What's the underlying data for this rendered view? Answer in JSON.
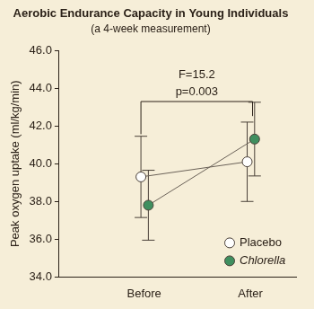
{
  "chart_data": {
    "type": "line",
    "title": "Aerobic Endurance Capacity in Young Individuals",
    "subtitle": "(a 4-week measurement)",
    "y_label": "Peak oxygen uptake (ml/kg/min)",
    "annotations": [
      "F=15.2",
      "p=0.003"
    ],
    "categories": [
      "Before",
      "After"
    ],
    "series": [
      {
        "name": "Placebo",
        "color": "#ffffff",
        "values": [
          39.3,
          40.1
        ],
        "error": [
          2.15,
          2.1
        ]
      },
      {
        "name": "Chlorella",
        "color": "#3f8f5f",
        "values": [
          37.8,
          41.3
        ],
        "error": [
          1.85,
          1.95
        ]
      }
    ],
    "ylim": [
      34,
      46
    ],
    "yticks": [
      {
        "value": 34,
        "label": "34.0"
      },
      {
        "value": 36,
        "label": "36.0"
      },
      {
        "value": 38,
        "label": "38.0"
      },
      {
        "value": 40,
        "label": "40.0"
      },
      {
        "value": 42,
        "label": "42.0"
      },
      {
        "value": 44,
        "label": "44.0"
      },
      {
        "value": 46,
        "label": "46.0"
      }
    ],
    "grid": false,
    "legend": "lower right",
    "marker": "circle"
  }
}
